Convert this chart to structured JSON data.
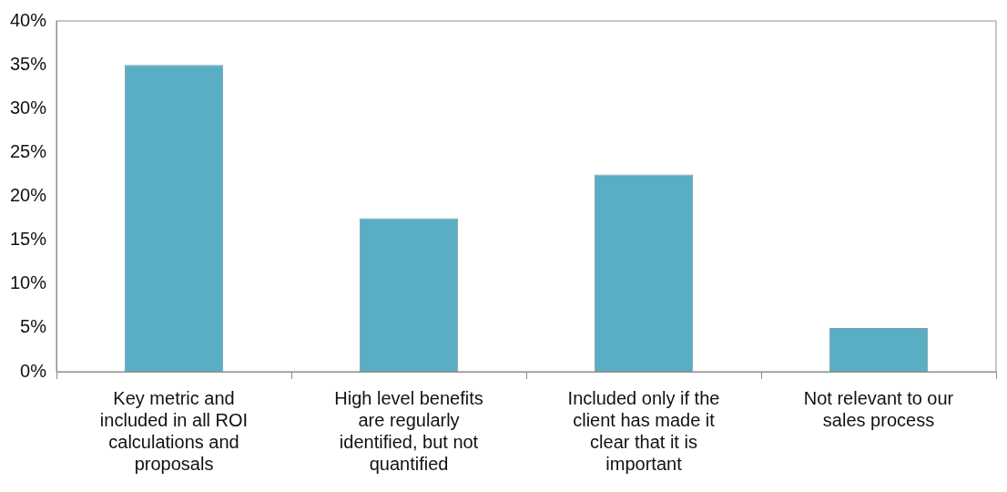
{
  "chart_data": {
    "type": "bar",
    "categories": [
      "Key metric and included in all ROI calculations and proposals",
      "High level benefits are regularly identified, but not quantified",
      "Included only if the client has made it clear that it is important",
      "Not relevant to our sales process"
    ],
    "values": [
      35,
      17.5,
      22.5,
      5
    ],
    "color": "#5aaec4",
    "ylim": [
      0,
      40
    ],
    "yticks": [
      {
        "value": 0,
        "label": "0%"
      },
      {
        "value": 5,
        "label": "5%"
      },
      {
        "value": 10,
        "label": "10%"
      },
      {
        "value": 15,
        "label": "15%"
      },
      {
        "value": 20,
        "label": "20%"
      },
      {
        "value": 25,
        "label": "25%"
      },
      {
        "value": 30,
        "label": "30%"
      },
      {
        "value": 35,
        "label": "35%"
      },
      {
        "value": 40,
        "label": "40%"
      }
    ],
    "grid": false
  }
}
